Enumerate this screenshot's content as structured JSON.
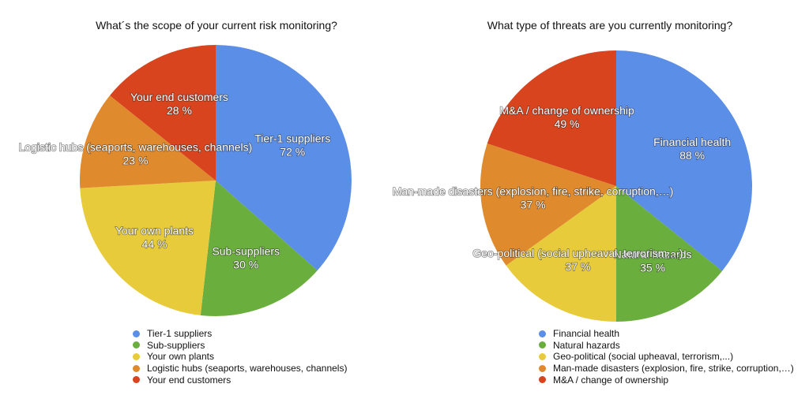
{
  "chart_data": [
    {
      "type": "pie",
      "title": "What´s the scope of your current risk monitoring?",
      "legend_position": "bottom",
      "unit": "%",
      "slices": [
        {
          "name": "Tier-1 suppliers",
          "value": 72,
          "label": "72 %",
          "label_lines": [
            "Tier-1 suppliers"
          ],
          "color": "#5B8EE6"
        },
        {
          "name": "Sub-suppliers",
          "value": 30,
          "label": "30 %",
          "label_lines": [
            "Sub-suppliers"
          ],
          "color": "#6AAE3E"
        },
        {
          "name": "Your own plants",
          "value": 44,
          "label": "44 %",
          "label_lines": [
            "Your own plants"
          ],
          "color": "#E7CB3A"
        },
        {
          "name": "Logistic hubs (seaports, warehouses, channels)",
          "value": 23,
          "label": "23 %",
          "label_lines": [
            "Logistic hubs (seaports, warehouses, channels)"
          ],
          "color": "#E08A2E"
        },
        {
          "name": "Your end customers",
          "value": 28,
          "label": "28 %",
          "label_lines": [
            "Your end customers"
          ],
          "color": "#D8441E"
        }
      ]
    },
    {
      "type": "pie",
      "title": "What type of threats are you currently monitoring?",
      "legend_position": "bottom",
      "unit": "%",
      "slices": [
        {
          "name": "Financial health",
          "value": 88,
          "label": "88 %",
          "label_lines": [
            "Financial health"
          ],
          "color": "#5B8EE6"
        },
        {
          "name": "Natural hazards",
          "value": 35,
          "label": "35 %",
          "label_lines": [
            "Natural hazards"
          ],
          "color": "#6AAE3E"
        },
        {
          "name": "Geo-political (social upheaval, terrorism,...)",
          "value": 37,
          "label": "37 %",
          "label_lines": [
            "Geo-political (social upheaval, terrorism,...)"
          ],
          "color": "#E7CB3A"
        },
        {
          "name": "Man-made disasters (explosion, fire, strike, corruption,…)",
          "value": 37,
          "label": "37 %",
          "label_lines": [
            "Man-made disasters (explosion, fire, strike, corruption,…)"
          ],
          "color": "#E08A2E"
        },
        {
          "name": "M&A / change of ownership",
          "value": 49,
          "label": "49 %",
          "label_lines": [
            "M&A / change of ownership"
          ],
          "color": "#D8441E"
        }
      ]
    }
  ]
}
